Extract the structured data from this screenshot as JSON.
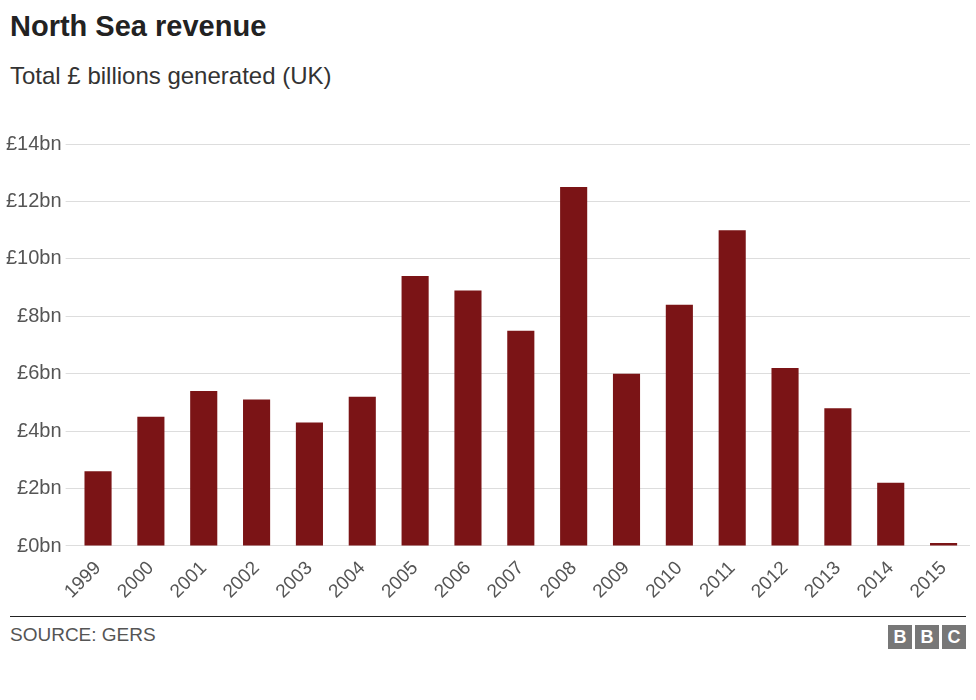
{
  "chart_data": {
    "type": "bar",
    "title": "North Sea revenue",
    "subtitle": "Total £ billions generated (UK)",
    "categories": [
      "1999",
      "2000",
      "2001",
      "2002",
      "2003",
      "2004",
      "2005",
      "2006",
      "2007",
      "2008",
      "2009",
      "2010",
      "2011",
      "2012",
      "2013",
      "2014",
      "2015"
    ],
    "values": [
      2.6,
      4.5,
      5.4,
      5.1,
      4.3,
      5.2,
      9.4,
      8.9,
      7.5,
      12.5,
      6.0,
      8.4,
      11.0,
      6.2,
      4.8,
      2.2,
      0.1
    ],
    "color": "#7b1416",
    "ylim": [
      0,
      14
    ],
    "yticks": [
      {
        "value": 0,
        "label": "£0bn"
      },
      {
        "value": 2,
        "label": "£2bn"
      },
      {
        "value": 4,
        "label": "£4bn"
      },
      {
        "value": 6,
        "label": "£6bn"
      },
      {
        "value": 8,
        "label": "£8bn"
      },
      {
        "value": 10,
        "label": "£10bn"
      },
      {
        "value": 12,
        "label": "£12bn"
      },
      {
        "value": 14,
        "label": "£14bn"
      }
    ],
    "grid": true,
    "source": "SOURCE: GERS",
    "logo": "BBC"
  }
}
